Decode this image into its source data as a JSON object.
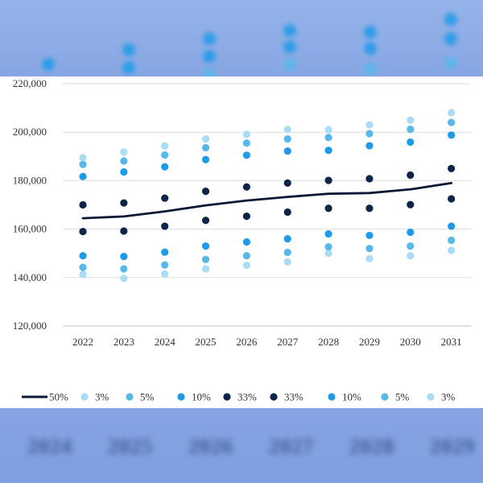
{
  "colors": {
    "median": "#0a1a36",
    "p33": "#0f2547",
    "p10": "#1e9be8",
    "p5": "#58b8ec",
    "p3": "#a9dcf5",
    "grid": "#dddddd",
    "axis": "#bfbfbf"
  },
  "background": {
    "blurred_labels": [
      "2024",
      "2025",
      "2026",
      "2027",
      "2028",
      "2029"
    ]
  },
  "chart_data": {
    "type": "line",
    "x": [
      "2022",
      "2023",
      "2024",
      "2025",
      "2026",
      "2027",
      "2028",
      "2029",
      "2030",
      "2031"
    ],
    "ylim": [
      120000,
      220000
    ],
    "yticks": [
      120000,
      140000,
      160000,
      180000,
      200000,
      220000
    ],
    "ytick_labels": [
      "120,000",
      "140,000",
      "160,000",
      "180,000",
      "200,000",
      "220,000"
    ],
    "grid": "horizontal",
    "legend_position": "bottom",
    "line_series": {
      "name": "50%",
      "values": [
        164500,
        165200,
        167300,
        169800,
        171800,
        173300,
        174600,
        174900,
        176400,
        179000
      ]
    },
    "dot_series": [
      {
        "name": "3%",
        "color_key": "p3",
        "values": [
          141300,
          139700,
          141500,
          143600,
          145100,
          146500,
          150000,
          147800,
          149000,
          151200
        ]
      },
      {
        "name": "5%",
        "color_key": "p5",
        "values": [
          144200,
          143600,
          145200,
          147500,
          149000,
          150400,
          152700,
          152000,
          153000,
          155400
        ]
      },
      {
        "name": "10%",
        "color_key": "p10",
        "values": [
          149000,
          148700,
          150500,
          153000,
          154700,
          156000,
          158000,
          157400,
          158700,
          161200
        ]
      },
      {
        "name": "33%",
        "color_key": "p33",
        "values": [
          159000,
          159200,
          161200,
          163600,
          165300,
          167000,
          168600,
          168600,
          170100,
          172500
        ]
      },
      {
        "name": "33%",
        "color_key": "p33",
        "values": [
          170000,
          170800,
          172800,
          175600,
          177400,
          179000,
          180100,
          180800,
          182300,
          185000
        ]
      },
      {
        "name": "10%",
        "color_key": "p10",
        "values": [
          181700,
          183600,
          185700,
          188700,
          190500,
          192200,
          192500,
          194400,
          195900,
          198800
        ]
      },
      {
        "name": "5%",
        "color_key": "p5",
        "values": [
          186700,
          188100,
          190600,
          193600,
          195500,
          197200,
          197800,
          199400,
          201200,
          204000
        ]
      },
      {
        "name": "3%",
        "color_key": "p3",
        "values": [
          189500,
          191800,
          194300,
          197200,
          199100,
          201100,
          201000,
          203000,
          205000,
          208100
        ]
      }
    ]
  }
}
